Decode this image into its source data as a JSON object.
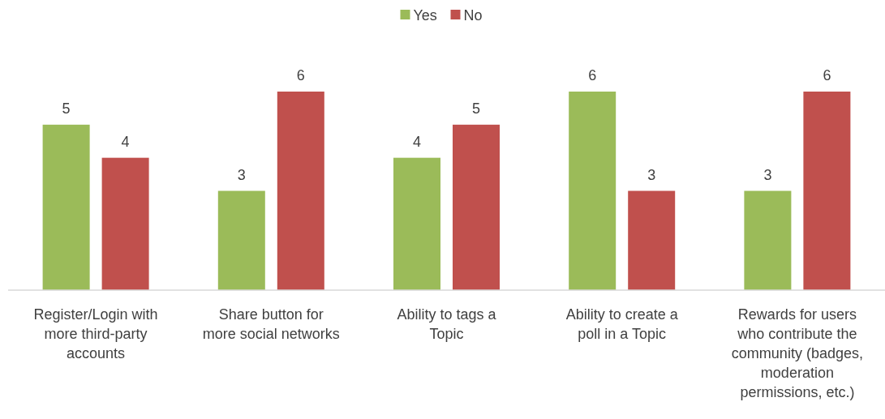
{
  "chart_data": {
    "type": "bar",
    "categories": [
      "Register/Login with more third-party accounts",
      "Share button for more social networks",
      "Ability to tags a Topic",
      "Ability to create a poll in a Topic",
      "Rewards for users who contribute the community (badges, moderation permissions, etc.)"
    ],
    "series": [
      {
        "name": "Yes",
        "color": "#9bbb59",
        "values": [
          5,
          3,
          4,
          6,
          3
        ]
      },
      {
        "name": "No",
        "color": "#c0504d",
        "values": [
          4,
          6,
          5,
          3,
          6
        ]
      }
    ],
    "tick_labels": "x",
    "data_labels": true,
    "legend": "top"
  }
}
